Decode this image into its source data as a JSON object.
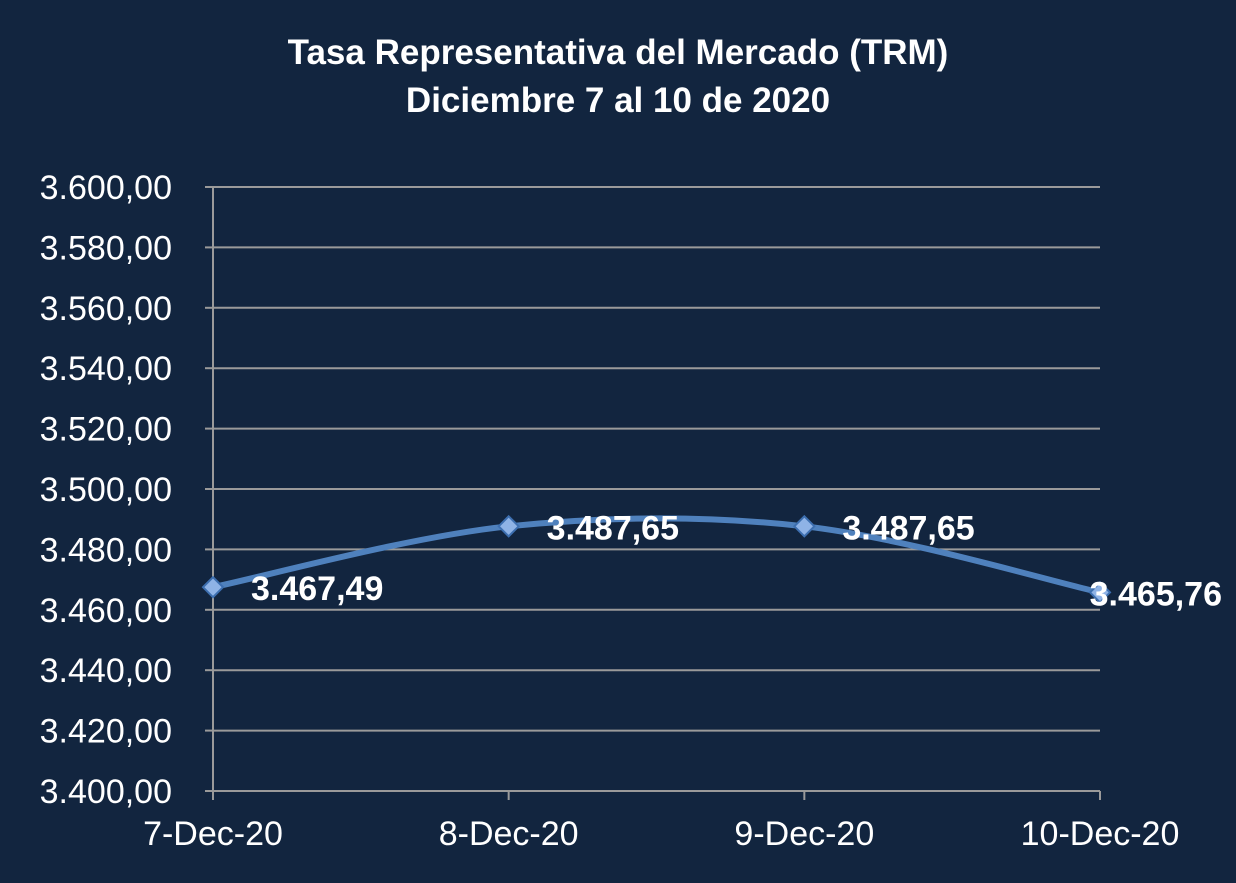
{
  "chart_data": {
    "type": "line",
    "title": "Tasa Representativa del Mercado (TRM)",
    "subtitle": "Diciembre 7 al 10 de  2020",
    "categories": [
      "7-Dec-20",
      "8-Dec-20",
      "9-Dec-20",
      "10-Dec-20"
    ],
    "series": [
      {
        "values": [
          3467.49,
          3487.65,
          3487.65,
          3465.76
        ],
        "data_labels": [
          "3.467,49",
          "3.487,65",
          "3.487,65",
          "3.465,76"
        ],
        "color": "#4f81bd",
        "marker": "diamond",
        "smooth": true
      }
    ],
    "ylim": [
      3400,
      3600
    ],
    "y_ticks": [
      3400,
      3420,
      3440,
      3460,
      3480,
      3500,
      3520,
      3540,
      3560,
      3580,
      3600
    ],
    "y_tick_labels": [
      "3.400,00",
      "3.420,00",
      "3.440,00",
      "3.460,00",
      "3.480,00",
      "3.500,00",
      "3.520,00",
      "3.540,00",
      "3.560,00",
      "3.580,00",
      "3.600,00"
    ],
    "xlabel": "",
    "ylabel": "",
    "grid": true,
    "legend": "none"
  },
  "colors": {
    "background": "#12253f",
    "gridline": "#9a9a9a",
    "axis": "#9a9a9a",
    "text": "#ffffff",
    "series": "#4f81bd",
    "marker_fill": "#8fb3e6",
    "marker_stroke": "#3d6fb0"
  }
}
